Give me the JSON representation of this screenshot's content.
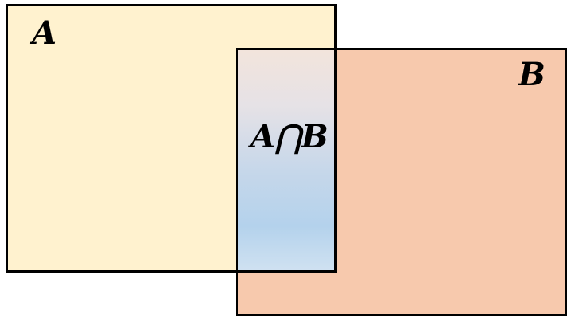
{
  "diagram": {
    "set_a": {
      "label": "A",
      "fill_color": "#fff2cf"
    },
    "set_b": {
      "label": "B",
      "fill_color": "#f7c9ad"
    },
    "intersection": {
      "label": "A⋂B",
      "gradient_colors": [
        "#f2e4dc",
        "#b4d2ec"
      ]
    },
    "outline_color": "#000000"
  }
}
